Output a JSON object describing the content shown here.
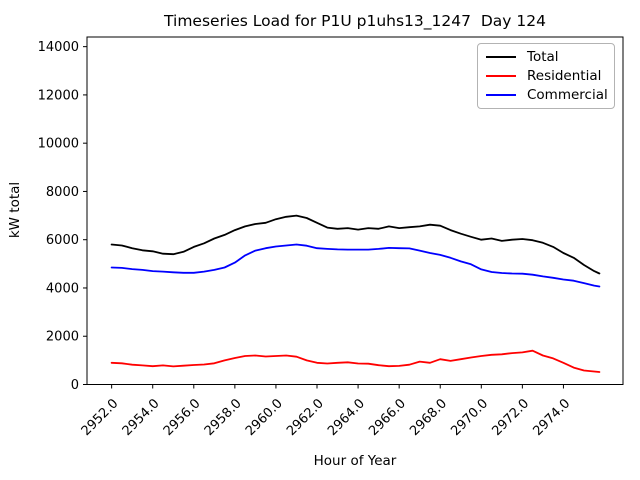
{
  "title": "Timeseries Load for P1U p1uhs13_1247  Day 124",
  "colors": {
    "background": "#ffffff",
    "axis": "#000000",
    "legend_border": "#b3b3b3"
  },
  "chart_data": {
    "type": "line",
    "title": "Timeseries Load for P1U p1uhs13_1247  Day 124",
    "xlabel": "Hour of Year",
    "ylabel": "kW total",
    "grid": false,
    "legend_position": "upper right",
    "xlim": [
      2950.8,
      2976.9
    ],
    "ylim": [
      0,
      14400
    ],
    "xticks": [
      2952,
      2954,
      2956,
      2958,
      2960,
      2962,
      2964,
      2966,
      2968,
      2970,
      2972,
      2974
    ],
    "xtick_labels": [
      "2952.0",
      "2954.0",
      "2956.0",
      "2958.0",
      "2960.0",
      "2962.0",
      "2964.0",
      "2966.0",
      "2968.0",
      "2970.0",
      "2972.0",
      "2974.0"
    ],
    "yticks": [
      0,
      2000,
      4000,
      6000,
      8000,
      10000,
      12000,
      14000
    ],
    "ytick_labels": [
      "0",
      "2000",
      "4000",
      "6000",
      "8000",
      "10000",
      "12000",
      "14000"
    ],
    "x": [
      2952,
      2952.5,
      2953,
      2953.5,
      2954,
      2954.5,
      2955,
      2955.5,
      2956,
      2956.5,
      2957,
      2957.5,
      2958,
      2958.5,
      2959,
      2959.5,
      2960,
      2960.5,
      2961,
      2961.5,
      2962,
      2962.5,
      2963,
      2963.5,
      2964,
      2964.5,
      2965,
      2965.5,
      2966,
      2966.5,
      2967,
      2967.5,
      2968,
      2968.5,
      2969,
      2969.5,
      2970,
      2970.5,
      2971,
      2971.5,
      2972,
      2972.5,
      2973,
      2973.5,
      2974,
      2974.5,
      2975,
      2975.5,
      2975.75
    ],
    "series": [
      {
        "name": "Total",
        "color": "#000000",
        "values": [
          5800,
          5760,
          5650,
          5560,
          5520,
          5420,
          5400,
          5500,
          5700,
          5850,
          6050,
          6200,
          6400,
          6550,
          6650,
          6700,
          6850,
          6950,
          7000,
          6900,
          6700,
          6500,
          6450,
          6480,
          6420,
          6480,
          6450,
          6550,
          6480,
          6520,
          6550,
          6620,
          6580,
          6400,
          6250,
          6120,
          6000,
          6050,
          5950,
          6000,
          6030,
          5980,
          5870,
          5700,
          5450,
          5250,
          4950,
          4700,
          4600
        ]
      },
      {
        "name": "Residential",
        "color": "#ff0000",
        "values": [
          900,
          880,
          820,
          790,
          760,
          790,
          750,
          780,
          810,
          830,
          880,
          1000,
          1100,
          1180,
          1200,
          1160,
          1180,
          1200,
          1150,
          1000,
          900,
          870,
          900,
          920,
          870,
          860,
          800,
          760,
          770,
          820,
          950,
          900,
          1050,
          980,
          1050,
          1120,
          1180,
          1230,
          1250,
          1300,
          1330,
          1400,
          1200,
          1080,
          900,
          700,
          580,
          540,
          520
        ]
      },
      {
        "name": "Commercial",
        "color": "#0000ff",
        "values": [
          4850,
          4830,
          4780,
          4750,
          4700,
          4680,
          4650,
          4630,
          4630,
          4680,
          4750,
          4850,
          5050,
          5350,
          5550,
          5650,
          5720,
          5760,
          5800,
          5750,
          5650,
          5620,
          5600,
          5590,
          5590,
          5590,
          5620,
          5660,
          5650,
          5640,
          5550,
          5450,
          5370,
          5250,
          5100,
          4980,
          4770,
          4660,
          4620,
          4600,
          4590,
          4550,
          4480,
          4420,
          4350,
          4300,
          4200,
          4100,
          4060
        ]
      }
    ]
  }
}
